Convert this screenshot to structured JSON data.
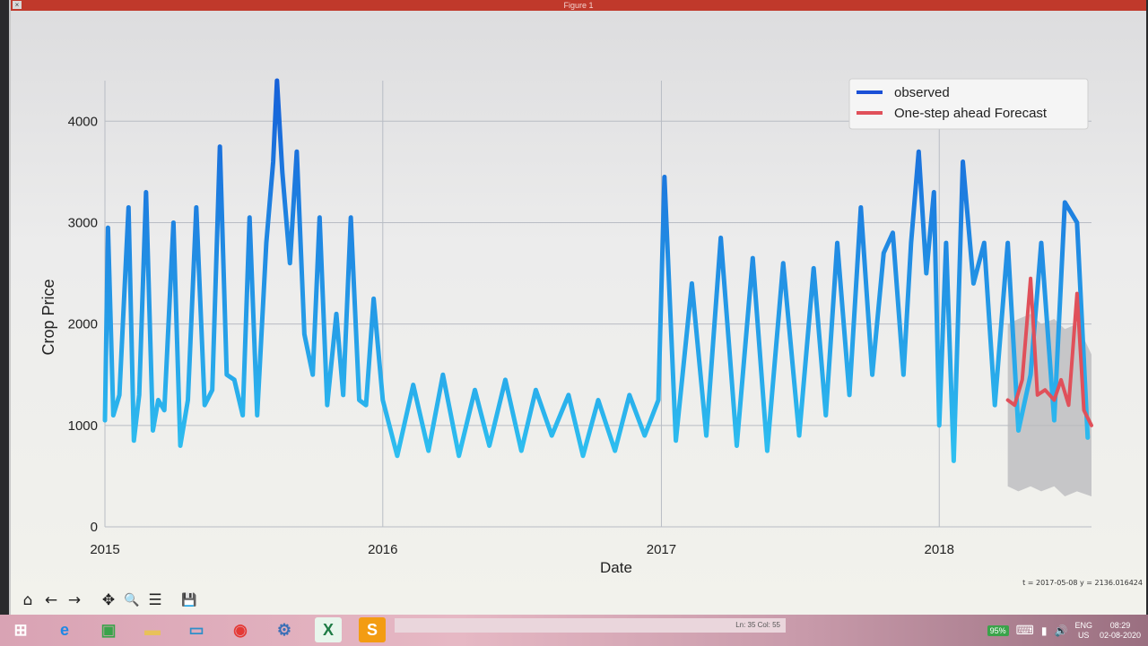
{
  "window": {
    "title": "Figure 1",
    "close_glyph": "×"
  },
  "chart_data": {
    "type": "line",
    "title": "",
    "xlabel": "Date",
    "ylabel": "Crop Price",
    "xlim": [
      "2015-01-01",
      "2018-07-20"
    ],
    "ylim": [
      0,
      4400
    ],
    "xticks": [
      {
        "date": "2015-01-01",
        "label": "2015"
      },
      {
        "date": "2016-01-01",
        "label": "2016"
      },
      {
        "date": "2017-01-01",
        "label": "2017"
      },
      {
        "date": "2018-01-01",
        "label": "2018"
      }
    ],
    "yticks": [
      0,
      1000,
      2000,
      3000,
      4000
    ],
    "grid": true,
    "legend": {
      "position": "top-right",
      "entries": [
        {
          "name": "observed",
          "color": "#1a4fd6"
        },
        {
          "name": "One-step ahead Forecast",
          "color": "#e0505a"
        }
      ]
    },
    "series": [
      {
        "name": "observed",
        "color": "#1e90e8",
        "x": [
          "2015-01-01",
          "2015-01-05",
          "2015-01-12",
          "2015-01-20",
          "2015-02-01",
          "2015-02-08",
          "2015-02-15",
          "2015-02-24",
          "2015-03-05",
          "2015-03-12",
          "2015-03-20",
          "2015-04-01",
          "2015-04-10",
          "2015-04-20",
          "2015-05-01",
          "2015-05-12",
          "2015-05-22",
          "2015-06-01",
          "2015-06-10",
          "2015-06-20",
          "2015-07-01",
          "2015-07-10",
          "2015-07-20",
          "2015-08-01",
          "2015-08-10",
          "2015-08-15",
          "2015-08-22",
          "2015-09-01",
          "2015-09-10",
          "2015-09-20",
          "2015-10-01",
          "2015-10-10",
          "2015-10-20",
          "2015-11-01",
          "2015-11-10",
          "2015-11-20",
          "2015-12-01",
          "2015-12-10",
          "2015-12-20",
          "2016-01-01",
          "2016-01-20",
          "2016-02-10",
          "2016-03-01",
          "2016-03-20",
          "2016-04-10",
          "2016-05-01",
          "2016-05-20",
          "2016-06-10",
          "2016-07-01",
          "2016-07-20",
          "2016-08-10",
          "2016-09-01",
          "2016-09-20",
          "2016-10-10",
          "2016-11-01",
          "2016-11-20",
          "2016-12-10",
          "2016-12-28",
          "2017-01-05",
          "2017-01-20",
          "2017-02-10",
          "2017-03-01",
          "2017-03-20",
          "2017-04-10",
          "2017-05-01",
          "2017-05-20",
          "2017-06-10",
          "2017-07-01",
          "2017-07-20",
          "2017-08-05",
          "2017-08-20",
          "2017-09-05",
          "2017-09-20",
          "2017-10-05",
          "2017-10-20",
          "2017-11-01",
          "2017-11-15",
          "2017-11-25",
          "2017-12-05",
          "2017-12-15",
          "2017-12-25",
          "2018-01-01",
          "2018-01-10",
          "2018-01-20",
          "2018-02-01",
          "2018-02-15",
          "2018-03-01",
          "2018-03-15",
          "2018-04-01",
          "2018-04-15",
          "2018-05-01",
          "2018-05-15",
          "2018-06-01",
          "2018-06-15",
          "2018-07-01",
          "2018-07-15"
        ],
        "y": [
          1050,
          2950,
          1100,
          1300,
          3150,
          850,
          1300,
          3300,
          950,
          1250,
          1150,
          3000,
          800,
          1250,
          3150,
          1200,
          1350,
          3750,
          1500,
          1450,
          1100,
          3050,
          1100,
          2800,
          3600,
          4400,
          3500,
          2600,
          3700,
          1900,
          1500,
          3050,
          1200,
          2100,
          1300,
          3050,
          1250,
          1200,
          2250,
          1250,
          700,
          1400,
          750,
          1500,
          700,
          1350,
          800,
          1450,
          750,
          1350,
          900,
          1300,
          700,
          1250,
          750,
          1300,
          900,
          1250,
          3450,
          850,
          2400,
          900,
          2850,
          800,
          2650,
          750,
          2600,
          900,
          2550,
          1100,
          2800,
          1300,
          3150,
          1500,
          2700,
          2900,
          1500,
          2800,
          3700,
          2500,
          3300,
          1000,
          2800,
          650,
          3600,
          2400,
          2800,
          1200,
          2800,
          950,
          1500,
          2800,
          1050,
          3200,
          3000,
          880
        ]
      },
      {
        "name": "One-step ahead Forecast",
        "color": "#e0505a",
        "x": [
          "2018-04-01",
          "2018-04-10",
          "2018-04-20",
          "2018-05-01",
          "2018-05-10",
          "2018-05-20",
          "2018-06-01",
          "2018-06-10",
          "2018-06-20",
          "2018-07-01",
          "2018-07-10",
          "2018-07-20"
        ],
        "y": [
          1250,
          1200,
          1450,
          2450,
          1300,
          1350,
          1250,
          1450,
          1200,
          2300,
          1150,
          1000
        ]
      }
    ],
    "confidence_band": {
      "color": "#b8b8bc",
      "x": [
        "2018-04-01",
        "2018-04-15",
        "2018-05-01",
        "2018-05-15",
        "2018-06-01",
        "2018-06-15",
        "2018-07-01",
        "2018-07-20"
      ],
      "upper": [
        2000,
        2050,
        2100,
        2000,
        2050,
        1950,
        2000,
        1700
      ],
      "lower": [
        400,
        350,
        400,
        350,
        400,
        300,
        350,
        300
      ]
    }
  },
  "toolbar": {
    "home_glyph": "⌂",
    "back_glyph": "←",
    "forward_glyph": "→",
    "pan_glyph": "✥",
    "zoom_glyph": "🔍",
    "configure_glyph": "☰",
    "save_glyph": "💾"
  },
  "coord_readout": "t = 2017-05-08  y = 2136.016424",
  "status_strip": "Ln: 35  Col: 55",
  "taskbar": {
    "icons": [
      {
        "name": "start-icon",
        "glyph": "⊞",
        "color": "#ffffff",
        "bg": "transparent"
      },
      {
        "name": "internet-explorer-icon",
        "glyph": "e",
        "color": "#1e88e5",
        "bg": "transparent"
      },
      {
        "name": "store-icon",
        "glyph": "▣",
        "color": "#3aa34a",
        "bg": "transparent"
      },
      {
        "name": "file-explorer-icon",
        "glyph": "▬",
        "color": "#e8c15a",
        "bg": "transparent"
      },
      {
        "name": "desktop-app-icon",
        "glyph": "▭",
        "color": "#2f8fc9",
        "bg": "transparent"
      },
      {
        "name": "chrome-icon",
        "glyph": "◉",
        "color": "#e53935",
        "bg": "transparent"
      },
      {
        "name": "python-icon",
        "glyph": "⚙",
        "color": "#3b6fb6",
        "bg": "transparent"
      },
      {
        "name": "excel-icon",
        "glyph": "X",
        "color": "#1e7b45",
        "bg": "#e8f5ec"
      },
      {
        "name": "sublime-text-icon",
        "glyph": "S",
        "color": "#ffffff",
        "bg": "#f39c12"
      }
    ],
    "battery": "95%",
    "language_line1": "ENG",
    "language_line2": "US",
    "time": "08:29",
    "date": "02-08-2020"
  }
}
